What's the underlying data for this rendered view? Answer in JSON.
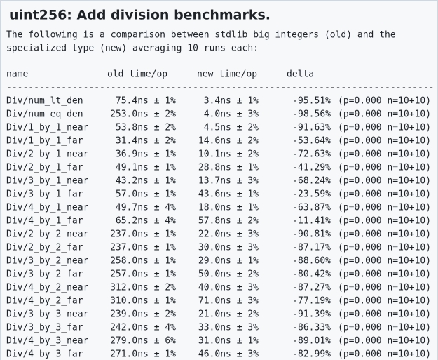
{
  "title": "uint256: Add division benchmarks.",
  "intro": [
    "The following is a comparison between stdlib big integers (old) and the",
    "specialized type (new) averaging 10 runs each:"
  ],
  "table": {
    "header": [
      "name",
      "old time/op",
      "new time/op",
      "delta"
    ],
    "separator": "------------------------------------------------------------------------------",
    "rows": [
      [
        "Div/num_lt_den",
        "75.4ns ± 1%",
        "3.4ns ± 1%",
        "-95.51%",
        "(p=0.000 n=10+10)"
      ],
      [
        "Div/num_eq_den",
        "253.0ns ± 2%",
        "4.0ns ± 3%",
        "-98.56%",
        "(p=0.000 n=10+10)"
      ],
      [
        "Div/1_by_1_near",
        "53.8ns ± 2%",
        "4.5ns ± 2%",
        "-91.63%",
        "(p=0.000 n=10+10)"
      ],
      [
        "Div/1_by_1_far",
        "31.4ns ± 2%",
        "14.6ns ± 2%",
        "-53.64%",
        "(p=0.000 n=10+10)"
      ],
      [
        "Div/2_by_1_near",
        "36.9ns ± 1%",
        "10.1ns ± 2%",
        "-72.63%",
        "(p=0.000 n=10+10)"
      ],
      [
        "Div/2_by_1_far",
        "49.1ns ± 1%",
        "28.8ns ± 1%",
        "-41.29%",
        "(p=0.000 n=10+10)"
      ],
      [
        "Div/3_by_1_near",
        "43.2ns ± 1%",
        "13.7ns ± 3%",
        "-68.24%",
        "(p=0.000 n=10+10)"
      ],
      [
        "Div/3_by_1_far",
        "57.0ns ± 1%",
        "43.6ns ± 1%",
        "-23.59%",
        "(p=0.000 n=10+10)"
      ],
      [
        "Div/4_by_1_near",
        "49.7ns ± 4%",
        "18.0ns ± 1%",
        "-63.87%",
        "(p=0.000 n=10+10)"
      ],
      [
        "Div/4_by_1_far",
        "65.2ns ± 4%",
        "57.8ns ± 2%",
        "-11.41%",
        "(p=0.000 n=10+10)"
      ],
      [
        "Div/2_by_2_near",
        "237.0ns ± 1%",
        "22.0ns ± 3%",
        "-90.81%",
        "(p=0.000 n=10+10)"
      ],
      [
        "Div/2_by_2_far",
        "237.0ns ± 1%",
        "30.0ns ± 3%",
        "-87.17%",
        "(p=0.000 n=10+10)"
      ],
      [
        "Div/3_by_2_near",
        "258.0ns ± 1%",
        "29.0ns ± 1%",
        "-88.60%",
        "(p=0.000 n=10+10)"
      ],
      [
        "Div/3_by_2_far",
        "257.0ns ± 1%",
        "50.0ns ± 2%",
        "-80.42%",
        "(p=0.000 n=10+10)"
      ],
      [
        "Div/4_by_2_near",
        "312.0ns ± 2%",
        "40.0ns ± 3%",
        "-87.27%",
        "(p=0.000 n=10+10)"
      ],
      [
        "Div/4_by_2_far",
        "310.0ns ± 1%",
        "71.0ns ± 3%",
        "-77.19%",
        "(p=0.000 n=10+10)"
      ],
      [
        "Div/3_by_3_near",
        "239.0ns ± 2%",
        "21.0ns ± 2%",
        "-91.39%",
        "(p=0.000 n=10+10)"
      ],
      [
        "Div/3_by_3_far",
        "242.0ns ± 4%",
        "33.0ns ± 3%",
        "-86.33%",
        "(p=0.000 n=10+10)"
      ],
      [
        "Div/4_by_3_near",
        "279.0ns ± 6%",
        "31.0ns ± 1%",
        "-89.01%",
        "(p=0.000 n=10+10)"
      ],
      [
        "Div/4_by_3_far",
        "271.0ns ± 1%",
        "46.0ns ± 3%",
        "-82.99%",
        "(p=0.000 n=10+10)"
      ]
    ]
  }
}
